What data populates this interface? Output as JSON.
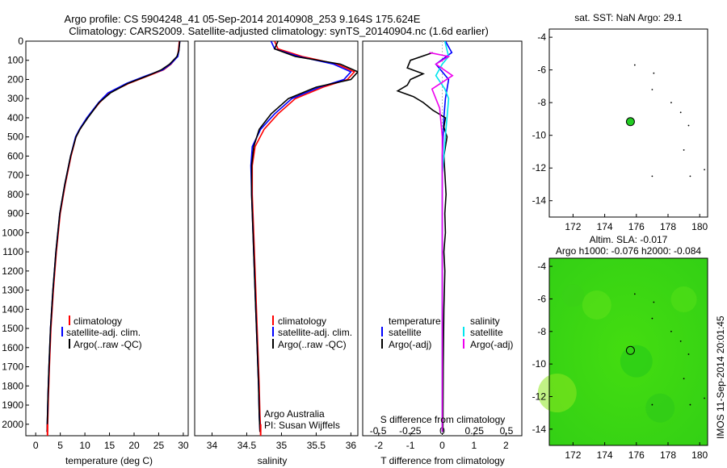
{
  "header": {
    "line1": "Argo profile: CS 5904248_41 05-Sep-2014 20140908_253 9.164S 175.624E",
    "line2": "Climatology: CARS2009. Satellite-adjusted climatology: synTS_20140904.nc (1.6d earlier)"
  },
  "colors": {
    "climatology": "#ff0000",
    "satellite": "#0000ff",
    "argo": "#000000",
    "sal_satellite": "#00e5ee",
    "sal_argo": "#ee00ee",
    "argo_marker": "#22cc22",
    "sla_field": "#33dd11"
  },
  "chart_data": [
    {
      "type": "line",
      "name": "temperature-profile",
      "xlabel": "temperature (deg C)",
      "ylabel": "",
      "xlim": [
        -2,
        31
      ],
      "ylim": [
        2060,
        0
      ],
      "xticks": [
        0,
        5,
        10,
        15,
        20,
        25,
        30
      ],
      "yticks": [
        0,
        100,
        200,
        300,
        400,
        500,
        600,
        700,
        800,
        900,
        1000,
        1100,
        1200,
        1300,
        1400,
        1500,
        1600,
        1700,
        1800,
        1900,
        2000
      ],
      "legend": [
        "climatology",
        "satellite-adj. clim.",
        "Argo(..raw -QC)"
      ],
      "series": [
        {
          "name": "climatology",
          "x": [
            29.2,
            29.0,
            28.8,
            27.5,
            26.0,
            23.0,
            19.0,
            15.0,
            13.0,
            10.5,
            9.0,
            8.2,
            7.2,
            6.0,
            5.0,
            4.2,
            3.6,
            3.1,
            2.8,
            2.6,
            2.5,
            2.4
          ],
          "y": [
            0,
            50,
            80,
            120,
            150,
            180,
            220,
            270,
            320,
            400,
            460,
            500,
            600,
            750,
            900,
            1100,
            1300,
            1500,
            1700,
            1850,
            1950,
            2040
          ]
        },
        {
          "name": "satellite-adj. clim.",
          "x": [
            29.3,
            29.1,
            28.9,
            27.4,
            25.8,
            22.5,
            18.5,
            14.7,
            12.8,
            10.4,
            8.9,
            8.1,
            7.1,
            5.9,
            4.9,
            4.1,
            3.5,
            3.0,
            2.7,
            2.5,
            2.4,
            2.3
          ],
          "y": [
            0,
            50,
            80,
            120,
            150,
            180,
            220,
            270,
            320,
            400,
            460,
            500,
            600,
            750,
            900,
            1100,
            1300,
            1500,
            1700,
            1850,
            1950,
            2040
          ]
        },
        {
          "name": "Argo(..raw -QC)",
          "x": [
            29.3,
            29.1,
            28.7,
            27.2,
            25.5,
            22.8,
            18.8,
            15.2,
            12.9,
            10.6,
            9.0,
            8.2,
            7.1,
            5.9,
            4.9,
            4.1,
            3.5,
            3.0,
            2.7,
            2.5,
            2.4,
            2.3
          ],
          "y": [
            0,
            50,
            80,
            120,
            150,
            180,
            220,
            270,
            320,
            400,
            460,
            500,
            600,
            750,
            900,
            1100,
            1300,
            1500,
            1700,
            1850,
            1950,
            2040
          ]
        }
      ]
    },
    {
      "type": "line",
      "name": "salinity-profile",
      "xlabel": "salinity",
      "xlim": [
        33.75,
        36.1
      ],
      "ylim": [
        2060,
        0
      ],
      "xticks": [
        34,
        34.5,
        35,
        35.5,
        36
      ],
      "legend": [
        "climatology",
        "satellite-adj. clim.",
        "Argo(..raw -QC)"
      ],
      "annotation": [
        "Argo Australia",
        "PI: Susan Wijffels"
      ],
      "series": [
        {
          "name": "climatology",
          "x": [
            34.9,
            34.95,
            35.3,
            35.8,
            36.05,
            35.95,
            35.6,
            35.2,
            34.95,
            34.75,
            34.62,
            34.58,
            34.58,
            34.6,
            34.62,
            34.64,
            34.66,
            34.68,
            34.69,
            34.7
          ],
          "y": [
            0,
            40,
            80,
            120,
            160,
            200,
            240,
            300,
            380,
            460,
            550,
            650,
            800,
            1000,
            1200,
            1400,
            1600,
            1800,
            1950,
            2040
          ]
        },
        {
          "name": "satellite-adj. clim.",
          "x": [
            34.85,
            34.9,
            35.25,
            35.75,
            36.0,
            35.9,
            35.55,
            35.15,
            34.9,
            34.7,
            34.58,
            34.56,
            34.57,
            34.59,
            34.61,
            34.63,
            34.65,
            34.67,
            34.68,
            34.69
          ],
          "y": [
            0,
            40,
            80,
            120,
            160,
            200,
            240,
            300,
            380,
            460,
            550,
            650,
            800,
            1000,
            1200,
            1400,
            1600,
            1800,
            1950,
            2040
          ]
        },
        {
          "name": "Argo(..raw -QC)",
          "x": [
            34.95,
            34.9,
            35.2,
            35.85,
            36.1,
            36.0,
            35.5,
            35.1,
            34.85,
            34.68,
            34.6,
            34.57,
            34.57,
            34.59,
            34.61,
            34.63,
            34.65,
            34.67,
            34.68,
            34.69
          ],
          "y": [
            0,
            40,
            80,
            120,
            160,
            200,
            240,
            300,
            380,
            460,
            550,
            650,
            800,
            1000,
            1200,
            1400,
            1600,
            1800,
            1950,
            2040
          ]
        }
      ]
    },
    {
      "type": "line",
      "name": "difference-profile",
      "xlabel": "T difference from climatology",
      "xlabel_top": "S difference from climatology",
      "xlim": [
        -2.5,
        2.5
      ],
      "ylim": [
        2060,
        0
      ],
      "xticks": [
        -2,
        -1,
        0,
        1,
        2
      ],
      "xticks_top": [
        "-0.5",
        "-0.25",
        "0",
        "0.25",
        "0.5"
      ],
      "xticks_top_values": [
        -0.5,
        -0.25,
        0,
        0.25,
        0.5
      ],
      "legend_temperature": {
        "title": "temperature",
        "items": [
          "satellite",
          "Argo(-adj)"
        ]
      },
      "legend_salinity": {
        "title": "salinity",
        "items": [
          "satellite",
          "Argo(-adj)"
        ]
      },
      "series": [
        {
          "name": "T satellite",
          "x": [
            0.1,
            0.3,
            -0.2,
            0.2,
            0.1,
            0.05,
            0.0,
            0.0,
            0.0,
            0.0
          ],
          "y": [
            0,
            60,
            120,
            200,
            300,
            400,
            600,
            1000,
            1500,
            2040
          ]
        },
        {
          "name": "T Argo(-adj)",
          "x": [
            -0.3,
            -1.0,
            -1.1,
            -0.6,
            -1.0,
            -1.1,
            -1.4,
            -0.9,
            -0.6,
            -0.3,
            0.1,
            0.05,
            0.15,
            0.05,
            0.12,
            0.08,
            0.1,
            0.05,
            0.08,
            0.05,
            0.03,
            0.02
          ],
          "y": [
            60,
            100,
            140,
            170,
            200,
            230,
            260,
            290,
            320,
            360,
            400,
            450,
            500,
            600,
            800,
            900,
            1000,
            1100,
            1200,
            1400,
            1700,
            2040
          ]
        },
        {
          "name": "S satellite",
          "x": [
            0.02,
            0.05,
            0.0,
            -0.05,
            0.02,
            0.05,
            0.03,
            0.0,
            0.0,
            0.0
          ],
          "y": [
            0,
            80,
            120,
            180,
            250,
            300,
            450,
            700,
            1300,
            2040
          ]
        },
        {
          "name": "S Argo(-adj)",
          "x": [
            -0.1,
            0.05,
            -0.05,
            0.08,
            -0.08,
            -0.02,
            0.0,
            0.0,
            0.0,
            0.0
          ],
          "y": [
            60,
            80,
            120,
            180,
            250,
            350,
            500,
            700,
            1000,
            2040
          ]
        }
      ]
    },
    {
      "type": "scatter",
      "name": "sst-map",
      "title": "sat. SST: NaN Argo: 29.1",
      "xlim": [
        170.5,
        180.5
      ],
      "ylim": [
        -15,
        -3.5
      ],
      "xticks": [
        172,
        174,
        176,
        178,
        180
      ],
      "yticks": [
        -4,
        -6,
        -8,
        -10,
        -12,
        -14
      ],
      "argo_position": [
        175.624,
        -9.164
      ],
      "island_points": [
        [
          175.9,
          -5.7
        ],
        [
          177.1,
          -6.2
        ],
        [
          177.0,
          -7.2
        ],
        [
          178.2,
          -8.0
        ],
        [
          178.8,
          -8.6
        ],
        [
          179.3,
          -9.4
        ],
        [
          179.0,
          -10.9
        ],
        [
          177.0,
          -12.5
        ],
        [
          179.4,
          -12.5
        ],
        [
          180.3,
          -12.1
        ]
      ]
    },
    {
      "type": "heatmap",
      "name": "sla-map",
      "title": [
        "Altim. SLA: -0.017",
        "Argo h1000: -0.076 h2000: -0.084"
      ],
      "xlim": [
        170.5,
        180.5
      ],
      "ylim": [
        -15,
        -3.5
      ],
      "xticks": [
        172,
        174,
        176,
        178,
        180
      ],
      "yticks": [
        -4,
        -6,
        -8,
        -10,
        -12,
        -14
      ],
      "argo_position": [
        175.624,
        -9.164
      ],
      "side_label": "IMOS 11-Sep-2014 20:01:45"
    }
  ]
}
